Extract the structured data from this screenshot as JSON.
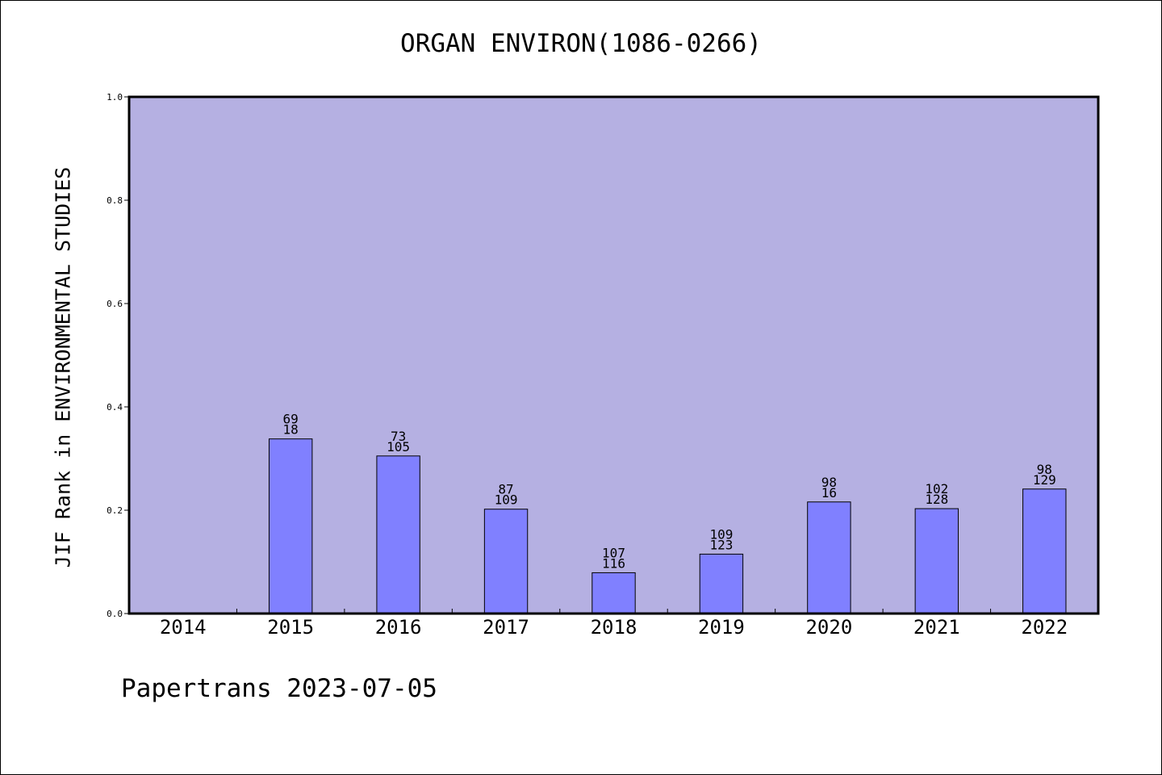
{
  "chart_data": {
    "type": "bar",
    "title": "ORGAN ENVIRON(1086-0266)",
    "ylabel": "JIF Rank in ENVIRONMENTAL STUDIES",
    "xlabel": "",
    "ylim": [
      0,
      1
    ],
    "yticks": [
      "0.0",
      "0.2",
      "0.4",
      "0.6",
      "0.8",
      "1.0"
    ],
    "grid": false,
    "categories": [
      "2014",
      "2015",
      "2016",
      "2017",
      "2018",
      "2019",
      "2020",
      "2021",
      "2022"
    ],
    "values": [
      null,
      0.338,
      0.305,
      0.202,
      0.079,
      0.115,
      0.216,
      0.203,
      0.241
    ],
    "labels_top": [
      "",
      "69",
      "73",
      "87",
      "107",
      "109",
      "98",
      "102",
      "98"
    ],
    "labels_bottom": [
      "",
      "18",
      "105",
      "109",
      "116",
      "123",
      "16",
      "128",
      "129"
    ],
    "colors": {
      "plot_bg": "#b5b0e2",
      "bar": "#8080ff",
      "bar_edge": "#000000"
    }
  },
  "footer": "Papertrans 2023-07-05"
}
